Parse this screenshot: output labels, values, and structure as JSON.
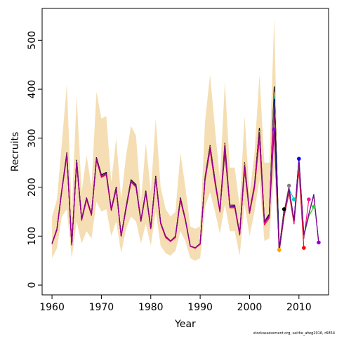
{
  "chart_data": {
    "type": "line",
    "xlabel": "Year",
    "ylabel": "Recruits",
    "xlim": [
      1958,
      2016
    ],
    "ylim": [
      -20,
      565
    ],
    "x_ticks": [
      1960,
      1970,
      1980,
      1990,
      2000,
      2010
    ],
    "y_ticks": [
      0,
      100,
      200,
      300,
      400,
      500
    ],
    "years": [
      1960,
      1961,
      1962,
      1963,
      1964,
      1965,
      1966,
      1967,
      1968,
      1969,
      1970,
      1971,
      1972,
      1973,
      1974,
      1975,
      1976,
      1977,
      1978,
      1979,
      1980,
      1981,
      1982,
      1983,
      1984,
      1985,
      1986,
      1987,
      1988,
      1989,
      1990,
      1991,
      1992,
      1993,
      1994,
      1995,
      1996,
      1997,
      1998,
      1999,
      2000,
      2001,
      2002,
      2003,
      2004,
      2005,
      2006
    ],
    "band_upper": [
      140,
      175,
      290,
      410,
      150,
      385,
      190,
      265,
      200,
      395,
      340,
      345,
      210,
      300,
      175,
      265,
      325,
      305,
      170,
      290,
      190,
      340,
      200,
      155,
      140,
      150,
      270,
      200,
      120,
      115,
      120,
      335,
      430,
      320,
      215,
      415,
      240,
      240,
      160,
      345,
      185,
      270,
      430,
      250,
      250,
      545,
      95
    ],
    "band_lower": [
      55,
      75,
      140,
      155,
      55,
      130,
      85,
      110,
      95,
      170,
      150,
      155,
      100,
      130,
      65,
      115,
      140,
      130,
      85,
      125,
      80,
      150,
      80,
      65,
      60,
      70,
      110,
      90,
      55,
      50,
      55,
      160,
      190,
      150,
      105,
      165,
      110,
      110,
      60,
      165,
      100,
      150,
      215,
      90,
      95,
      240,
      50
    ],
    "series": [
      {
        "color": "#000000",
        "values": [
          85,
          115,
          195,
          270,
          82,
          255,
          135,
          178,
          145,
          260,
          225,
          230,
          155,
          200,
          100,
          160,
          215,
          205,
          132,
          192,
          117,
          222,
          128,
          100,
          90,
          100,
          178,
          135,
          80,
          76,
          85,
          220,
          285,
          215,
          152,
          270,
          163,
          163,
          105,
          235,
          150,
          205,
          320,
          130,
          145,
          405,
          75
        ]
      },
      {
        "color": "#000000",
        "values": [
          85,
          115,
          195,
          270,
          82,
          255,
          135,
          178,
          145,
          260,
          225,
          230,
          155,
          200,
          100,
          160,
          215,
          205,
          132,
          192,
          117,
          222,
          128,
          100,
          90,
          100,
          178,
          135,
          80,
          76,
          85,
          220,
          285,
          215,
          152,
          290,
          163,
          163,
          105,
          250,
          150,
          205,
          320,
          128,
          143,
          395,
          70
        ]
      },
      {
        "color": "#DAA520",
        "values": [
          85,
          115,
          195,
          268,
          82,
          253,
          135,
          176,
          145,
          258,
          223,
          228,
          155,
          198,
          100,
          158,
          213,
          203,
          132,
          190,
          117,
          220,
          128,
          100,
          90,
          100,
          176,
          135,
          80,
          76,
          85,
          218,
          283,
          213,
          152,
          288,
          163,
          162,
          105,
          248,
          150,
          205,
          315,
          130,
          140,
          390,
          72
        ]
      },
      {
        "color": "#A52A2A",
        "values": [
          85,
          113,
          193,
          265,
          82,
          250,
          133,
          175,
          143,
          256,
          221,
          226,
          153,
          196,
          100,
          156,
          211,
          201,
          130,
          188,
          115,
          218,
          126,
          98,
          90,
          98,
          174,
          133,
          80,
          76,
          84,
          216,
          278,
          210,
          150,
          282,
          160,
          160,
          103,
          240,
          147,
          200,
          305,
          125,
          138,
          375,
          70
        ]
      },
      {
        "color": "#FF0000",
        "values": [
          84,
          112,
          192,
          263,
          82,
          248,
          132,
          174,
          142,
          255,
          220,
          225,
          152,
          195,
          100,
          155,
          210,
          200,
          130,
          187,
          115,
          217,
          125,
          97,
          89,
          97,
          173,
          132,
          79,
          75,
          83,
          214,
          275,
          208,
          149,
          278,
          158,
          158,
          102,
          237,
          146,
          198,
          298,
          123,
          137,
          362,
          68
        ]
      },
      {
        "color": "#0000FF",
        "values": [
          85,
          114,
          194,
          266,
          82,
          251,
          134,
          176,
          144,
          257,
          222,
          227,
          154,
          197,
          100,
          157,
          212,
          202,
          131,
          189,
          116,
          219,
          127,
          99,
          90,
          99,
          175,
          134,
          80,
          76,
          84,
          217,
          280,
          211,
          151,
          284,
          161,
          161,
          104,
          243,
          148,
          202,
          310,
          128,
          141,
          380,
          71
        ]
      },
      {
        "color": "#FF1493",
        "values": [
          84,
          113,
          193,
          264,
          82,
          249,
          133,
          175,
          143,
          256,
          221,
          226,
          153,
          196,
          100,
          156,
          211,
          201,
          130,
          188,
          115,
          218,
          126,
          98,
          89,
          98,
          174,
          133,
          79,
          75,
          84,
          215,
          276,
          209,
          150,
          280,
          159,
          159,
          103,
          239,
          147,
          199,
          300,
          125,
          138,
          370,
          69
        ]
      },
      {
        "color": "#8B008B",
        "values": [
          85,
          114,
          194,
          267,
          82,
          252,
          134,
          177,
          144,
          258,
          222,
          228,
          154,
          198,
          100,
          157,
          212,
          202,
          131,
          190,
          116,
          220,
          127,
          99,
          90,
          99,
          176,
          134,
          80,
          76,
          85,
          218,
          281,
          212,
          151,
          286,
          162,
          162,
          104,
          245,
          149,
          203,
          312,
          129,
          142,
          318,
          71
        ]
      }
    ],
    "retro": [
      {
        "color": "#000000",
        "x": [
          2005,
          2006,
          2007
        ],
        "y": [
          405,
          75,
          155
        ]
      },
      {
        "color": "#808080",
        "x": [
          2005,
          2006,
          2007,
          2008
        ],
        "y": [
          395,
          72,
          150,
          203
        ]
      },
      {
        "color": "#DAA520",
        "x": [
          2005,
          2006,
          2007,
          2008,
          2009
        ],
        "y": [
          390,
          72,
          150,
          198,
          135
        ]
      },
      {
        "color": "#00CED1",
        "x": [
          2005,
          2006,
          2007,
          2008,
          2009
        ],
        "y": [
          385,
          71,
          148,
          196,
          175
        ]
      },
      {
        "color": "#0000FF",
        "x": [
          2005,
          2006,
          2007,
          2008,
          2009,
          2010
        ],
        "y": [
          380,
          71,
          147,
          198,
          130,
          258
        ]
      },
      {
        "color": "#FF0000",
        "x": [
          2005,
          2006,
          2007,
          2008,
          2009,
          2010,
          2011
        ],
        "y": [
          362,
          68,
          140,
          188,
          125,
          235,
          76
        ]
      },
      {
        "color": "#FF1493",
        "x": [
          2005,
          2006,
          2007,
          2008,
          2009,
          2010,
          2011,
          2012
        ],
        "y": [
          370,
          69,
          143,
          192,
          128,
          245,
          95,
          175
        ]
      },
      {
        "color": "#32CD32",
        "x": [
          2005,
          2006,
          2007,
          2008,
          2009,
          2010,
          2011,
          2012,
          2013
        ],
        "y": [
          375,
          70,
          145,
          195,
          130,
          250,
          100,
          140,
          160
        ]
      },
      {
        "color": "#000080",
        "x": [
          2005,
          2006,
          2007,
          2008,
          2009,
          2010,
          2011,
          2012,
          2013,
          2014
        ],
        "y": [
          380,
          71,
          147,
          197,
          131,
          258,
          103,
          145,
          185,
          87
        ]
      },
      {
        "color": "#8B008B",
        "x": [
          2005,
          2006,
          2007,
          2008,
          2009,
          2010,
          2011,
          2012,
          2013,
          2014
        ],
        "y": [
          318,
          71,
          147,
          197,
          131,
          256,
          102,
          145,
          183,
          87
        ]
      }
    ],
    "endpoints": [
      {
        "color": "#9400D3",
        "x": 2005,
        "y": 318
      },
      {
        "color": "#FFA500",
        "x": 2006,
        "y": 72
      },
      {
        "color": "#000000",
        "x": 2007,
        "y": 155
      },
      {
        "color": "#808080",
        "x": 2008,
        "y": 203
      },
      {
        "color": "#00CED1",
        "x": 2009,
        "y": 175
      },
      {
        "color": "#0000FF",
        "x": 2010,
        "y": 258
      },
      {
        "color": "#FF0000",
        "x": 2011,
        "y": 76
      },
      {
        "color": "#FF1493",
        "x": 2012,
        "y": 175
      },
      {
        "color": "#32CD32",
        "x": 2013,
        "y": 160
      },
      {
        "color": "#9400D3",
        "x": 2014,
        "y": 87
      }
    ],
    "band_color": "#F5DEB3",
    "grid": false
  },
  "footnote": "stockassessment.org, saithe_afwg2016, r6854"
}
